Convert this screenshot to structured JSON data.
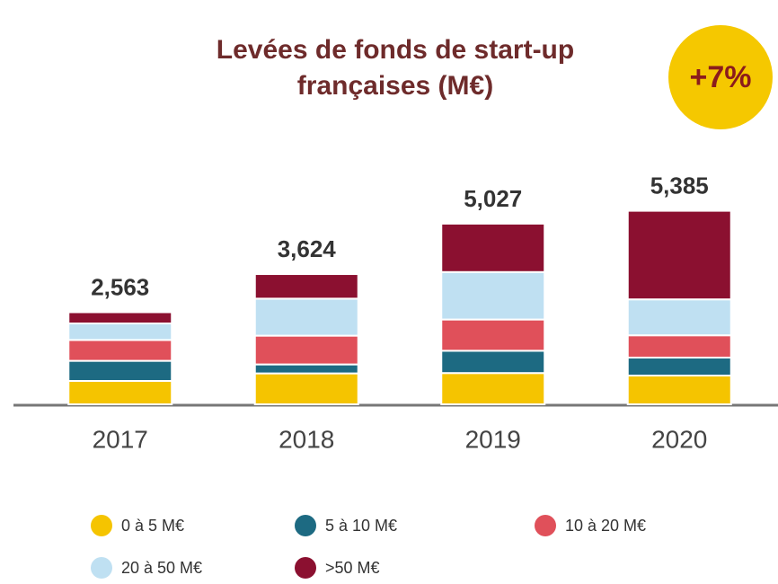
{
  "chart_data": {
    "type": "stacked-bar",
    "title": "Levées de fonds de start-up françaises (M€)",
    "annotation": "+7%",
    "categories": [
      "2017",
      "2018",
      "2019",
      "2020"
    ],
    "series": [
      {
        "name": "0 à 5 M€",
        "color": "#f5c400",
        "values": [
          650,
          860,
          870,
          800
        ]
      },
      {
        "name": "5 à 10 M€",
        "color": "#1d6a82",
        "values": [
          560,
          250,
          620,
          500
        ]
      },
      {
        "name": "10 à 20 M€",
        "color": "#e0505a",
        "values": [
          580,
          800,
          870,
          620
        ]
      },
      {
        "name": "20 à 50 M€",
        "color": "#bfe0f2",
        "values": [
          460,
          1030,
          1320,
          1000
        ]
      },
      {
        "name": ">50 M€",
        "color": "#8b1030",
        "values": [
          313,
          684,
          1347,
          2465
        ]
      }
    ],
    "total_values": [
      2563,
      3624,
      5027,
      5385
    ],
    "total_value_labels": [
      "2,563",
      "3,624",
      "5,027",
      "5,385"
    ],
    "ylim": [
      0,
      6000
    ]
  }
}
